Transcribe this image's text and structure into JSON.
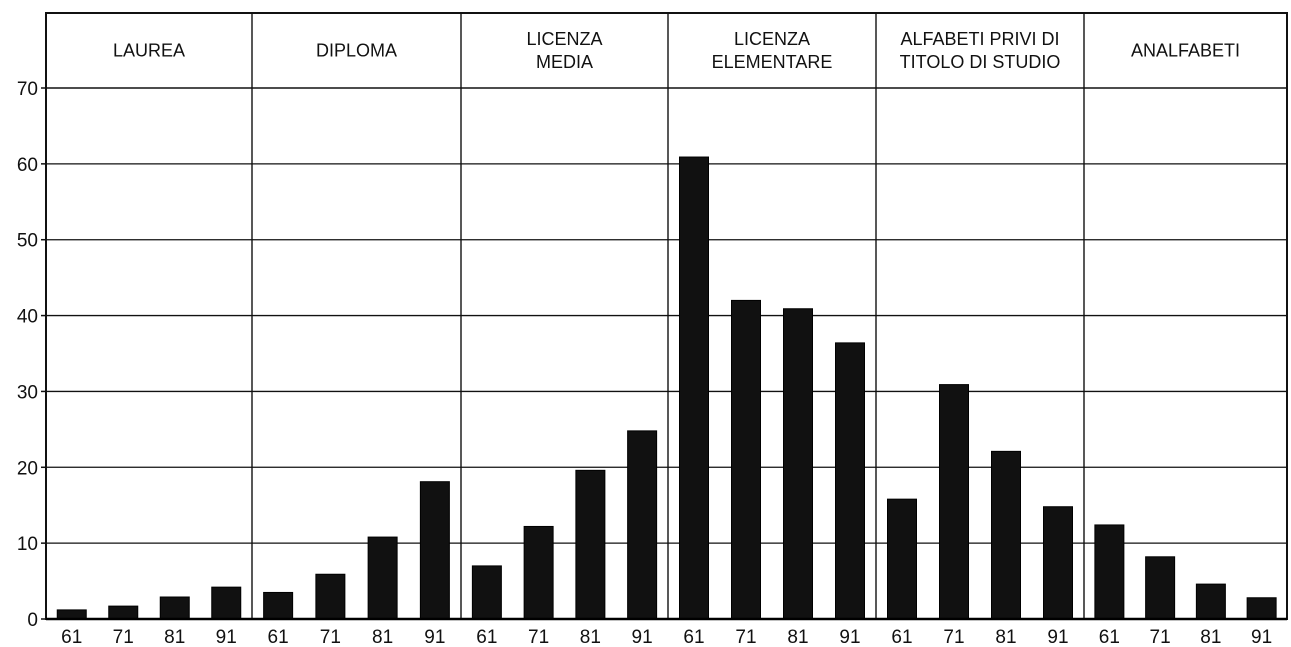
{
  "chart_data": {
    "type": "bar",
    "title": "",
    "xlabel": "",
    "ylabel": "",
    "ylim": [
      0,
      70
    ],
    "yticks": [
      "0",
      "10",
      "20",
      "30",
      "40",
      "50",
      "60",
      "70"
    ],
    "grid": true,
    "legend": "none",
    "bar_color": "#111111",
    "groups": [
      {
        "label_lines": [
          "LAUREA"
        ],
        "categories": [
          "61",
          "71",
          "81",
          "91"
        ],
        "values": [
          1.2,
          1.7,
          2.9,
          4.2
        ]
      },
      {
        "label_lines": [
          "DIPLOMA"
        ],
        "categories": [
          "61",
          "71",
          "81",
          "91"
        ],
        "values": [
          3.5,
          5.9,
          10.8,
          18.1
        ]
      },
      {
        "label_lines": [
          "LICENZA",
          "MEDIA"
        ],
        "categories": [
          "61",
          "71",
          "81",
          "91"
        ],
        "values": [
          7.0,
          12.2,
          19.6,
          24.8
        ]
      },
      {
        "label_lines": [
          "LICENZA",
          "ELEMENTARE"
        ],
        "categories": [
          "61",
          "71",
          "81",
          "91"
        ],
        "values": [
          60.9,
          42.0,
          40.9,
          36.4
        ]
      },
      {
        "label_lines": [
          "ALFABETI PRIVI DI",
          "TITOLO DI STUDIO"
        ],
        "categories": [
          "61",
          "71",
          "81",
          "91"
        ],
        "values": [
          15.8,
          30.9,
          22.1,
          14.8
        ]
      },
      {
        "label_lines": [
          "ANALFABETI"
        ],
        "categories": [
          "61",
          "71",
          "81",
          "91"
        ],
        "values": [
          12.4,
          8.2,
          4.6,
          2.8
        ]
      }
    ]
  }
}
